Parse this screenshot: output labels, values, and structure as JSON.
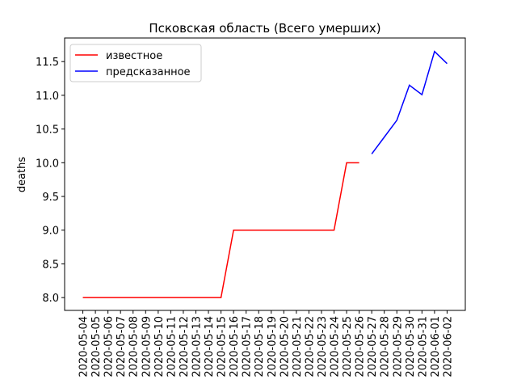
{
  "chart_data": {
    "type": "line",
    "title": "Псковская область (Всего умерших)",
    "ylabel": "deaths",
    "x": [
      "2020-05-04",
      "2020-05-05",
      "2020-05-06",
      "2020-05-07",
      "2020-05-08",
      "2020-05-09",
      "2020-05-10",
      "2020-05-11",
      "2020-05-12",
      "2020-05-13",
      "2020-05-14",
      "2020-05-15",
      "2020-05-16",
      "2020-05-17",
      "2020-05-18",
      "2020-05-19",
      "2020-05-20",
      "2020-05-21",
      "2020-05-22",
      "2020-05-23",
      "2020-05-24",
      "2020-05-25",
      "2020-05-26",
      "2020-05-27",
      "2020-05-28",
      "2020-05-29",
      "2020-05-30",
      "2020-05-31",
      "2020-06-01",
      "2020-06-02"
    ],
    "series": [
      {
        "name": "известное",
        "color": "#ff0000",
        "values": [
          8,
          8,
          8,
          8,
          8,
          8,
          8,
          8,
          8,
          8,
          8,
          8,
          9,
          9,
          9,
          9,
          9,
          9,
          9,
          9,
          9,
          10,
          10,
          null,
          null,
          null,
          null,
          null,
          null,
          null
        ]
      },
      {
        "name": "предсказанное",
        "color": "#0000ff",
        "values": [
          null,
          null,
          null,
          null,
          null,
          null,
          null,
          null,
          null,
          null,
          null,
          null,
          null,
          null,
          null,
          null,
          null,
          null,
          null,
          null,
          null,
          null,
          null,
          10.13,
          10.38,
          10.63,
          11.15,
          11.01,
          11.65,
          11.47
        ]
      }
    ],
    "ylim": [
      7.81,
      11.85
    ],
    "yticks": [
      {
        "value": 8,
        "label": "8.0"
      },
      8.5,
      {
        "value": 9,
        "label": "9.0"
      },
      9.5,
      {
        "value": 10,
        "label": "10.0"
      },
      10.5,
      {
        "value": 11,
        "label": "11.0"
      },
      11.5
    ],
    "legend": "upper left"
  }
}
